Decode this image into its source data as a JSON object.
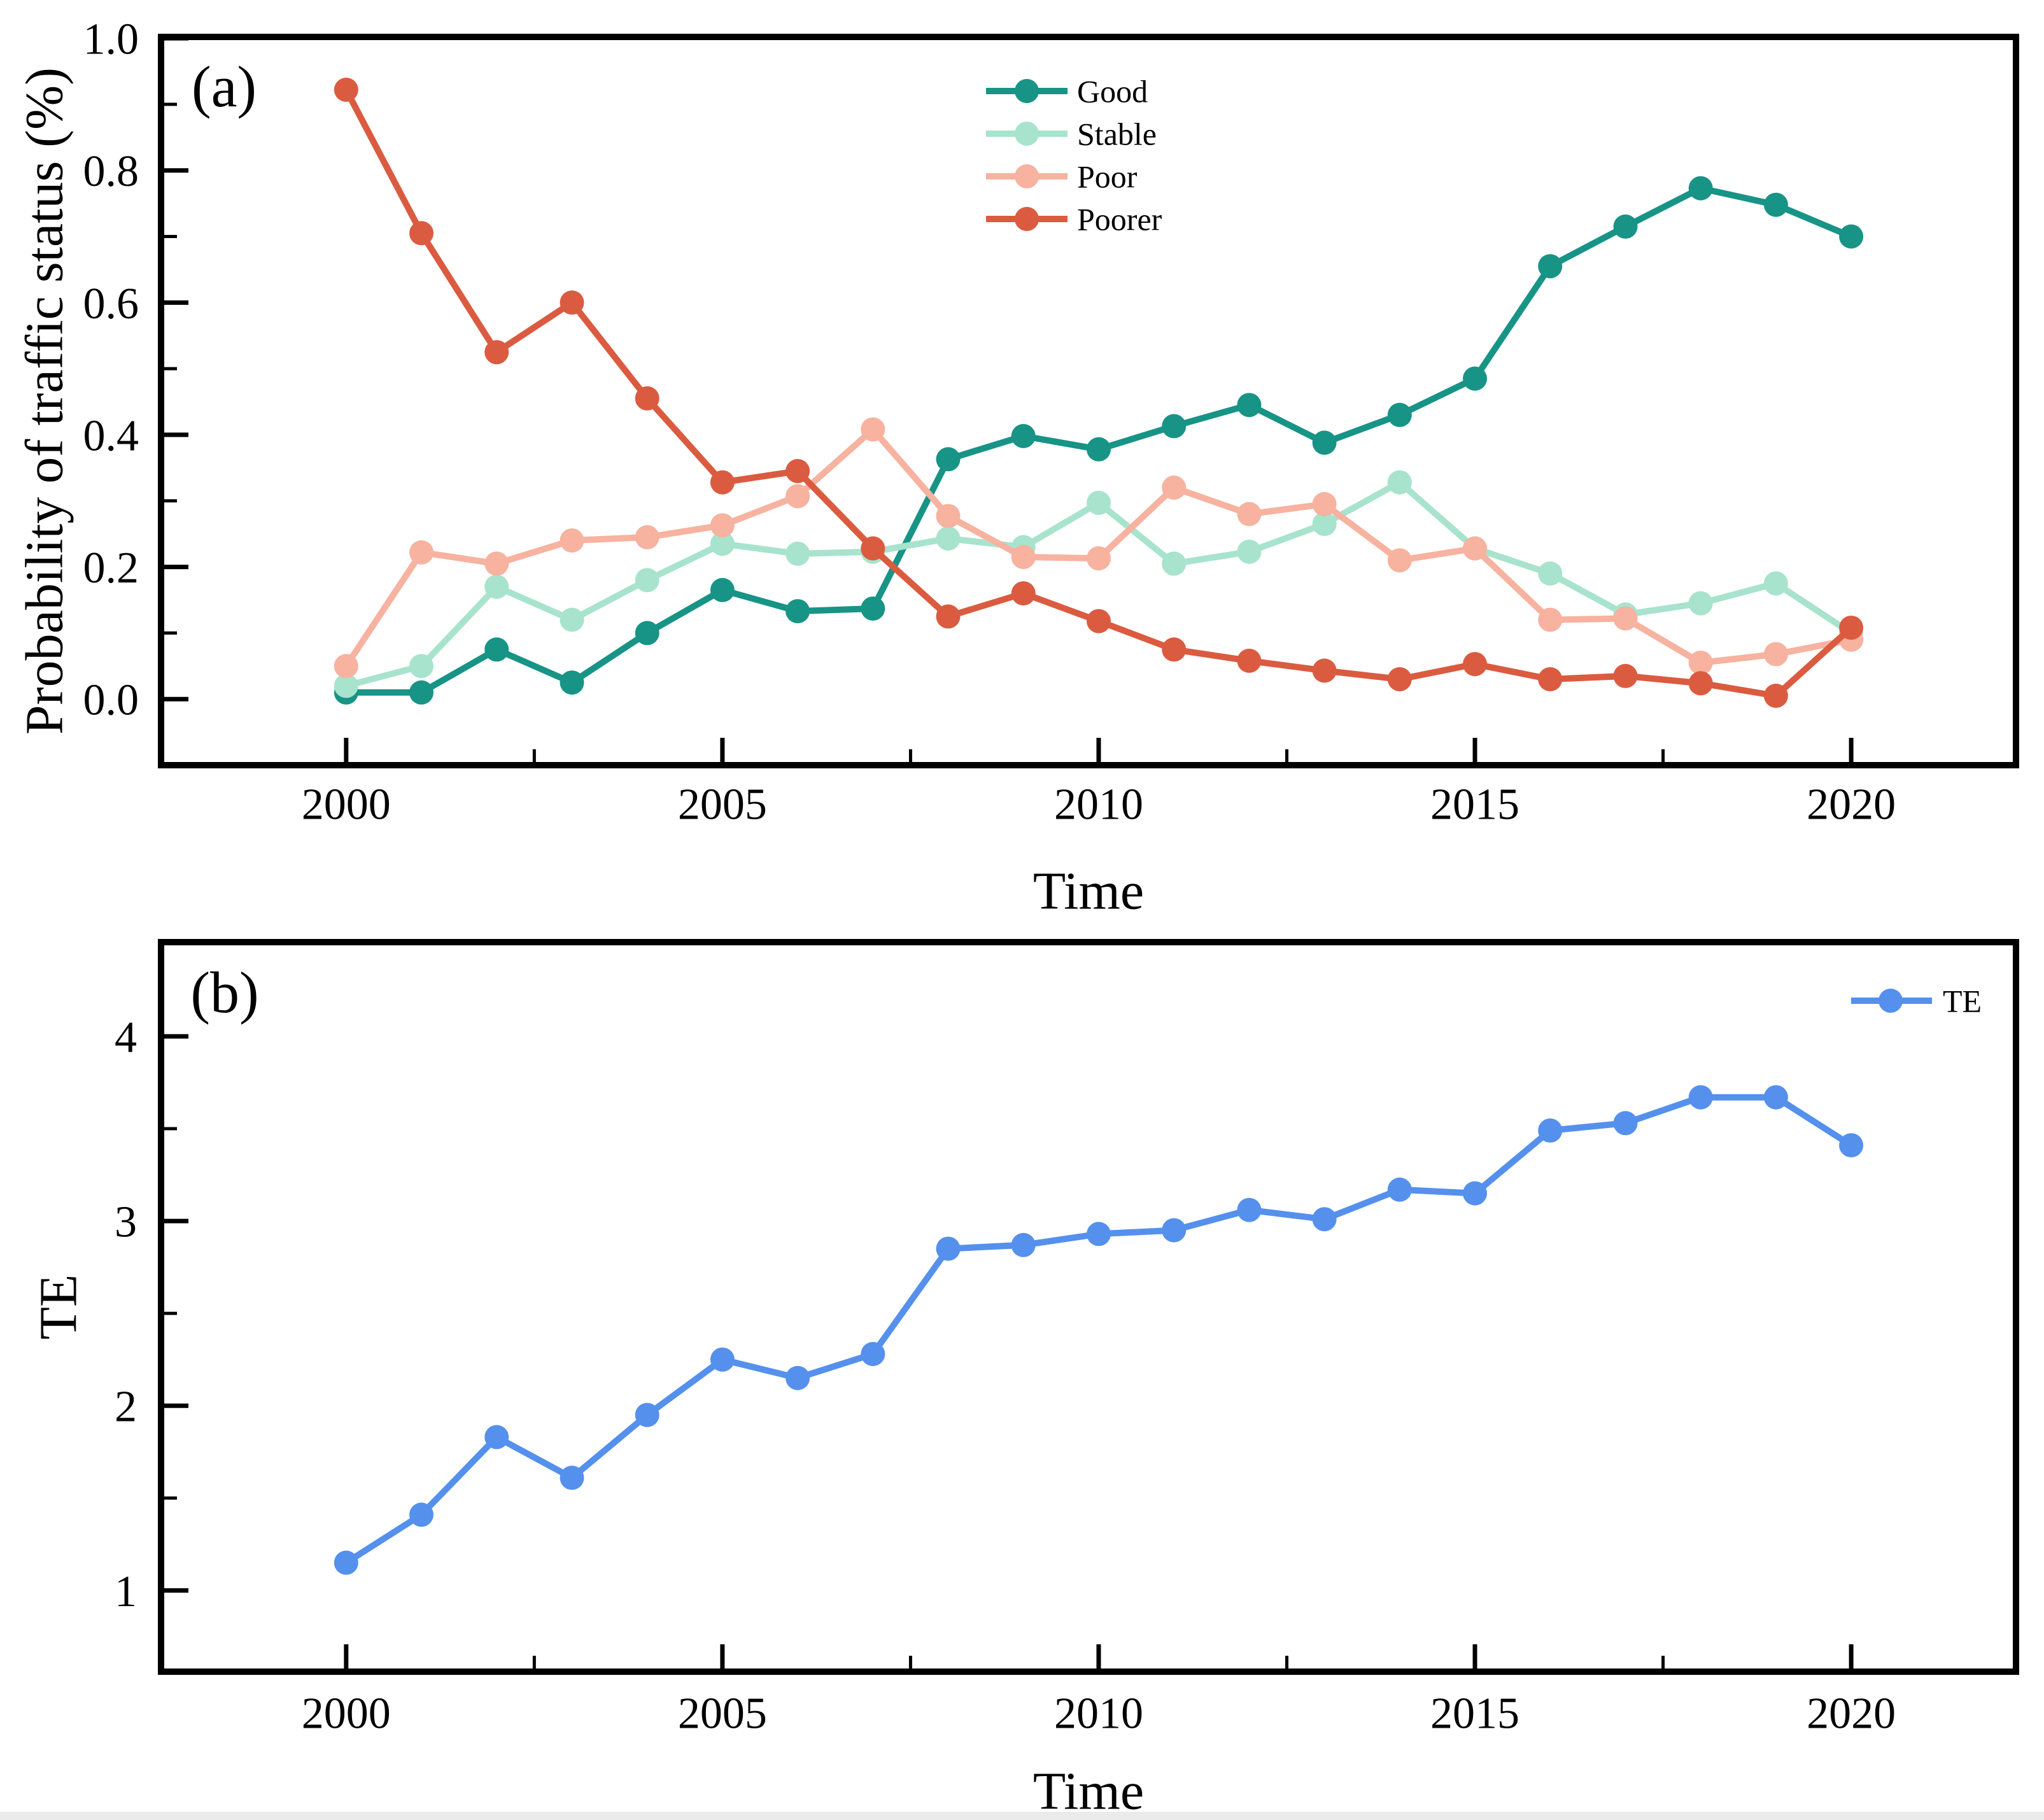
{
  "figure_colors": {
    "good": "#179486",
    "stable": "#A8E3CD",
    "poor": "#F7B2A0",
    "poorer": "#DB5B41",
    "te": "#5590EC",
    "axis": "#000000",
    "bottom_strip": "#ebebeb"
  },
  "chart_data": [
    {
      "type": "line",
      "panel_label": "(a)",
      "title": "",
      "xlabel": "Time",
      "ylabel": "Probability of traffic status (%)",
      "x": [
        2000,
        2001,
        2002,
        2003,
        2004,
        2005,
        2006,
        2007,
        2008,
        2009,
        2010,
        2011,
        2012,
        2013,
        2014,
        2015,
        2016,
        2017,
        2018,
        2019,
        2020
      ],
      "xlim": [
        1997.54,
        2022.19
      ],
      "ylim": [
        -0.1,
        1.002
      ],
      "xticks": [
        2000,
        2005,
        2010,
        2015,
        2020
      ],
      "xtick_labels": [
        "2000",
        "2005",
        "2010",
        "2015",
        "2020"
      ],
      "xticks_minor": [
        2002.5,
        2007.5,
        2012.5,
        2017.5
      ],
      "yticks": [
        0,
        0.2,
        0.4,
        0.6,
        0.8,
        1.0
      ],
      "ytick_labels": [
        "0.0",
        "0.2",
        "0.4",
        "0.6",
        "0.8",
        "1.0"
      ],
      "yticks_minor": [
        0.1,
        0.3,
        0.5,
        0.7,
        0.9
      ],
      "grid": false,
      "legend_position": "upper center-right, vertical",
      "series": [
        {
          "name": "Good",
          "color": "#179486",
          "values": [
            0.01,
            0.01,
            0.075,
            0.025,
            0.1,
            0.165,
            0.133,
            0.137,
            0.363,
            0.398,
            0.378,
            0.413,
            0.445,
            0.388,
            0.43,
            0.485,
            0.655,
            0.715,
            0.773,
            0.748,
            0.7
          ]
        },
        {
          "name": "Stable",
          "color": "#A8E3CD",
          "values": [
            0.02,
            0.05,
            0.17,
            0.12,
            0.18,
            0.235,
            0.22,
            0.223,
            0.243,
            0.23,
            0.297,
            0.205,
            0.223,
            0.265,
            0.328,
            0.228,
            0.19,
            0.128,
            0.145,
            0.175,
            0.1
          ]
        },
        {
          "name": "Poor",
          "color": "#F7B2A0",
          "values": [
            0.05,
            0.222,
            0.205,
            0.24,
            0.245,
            0.263,
            0.307,
            0.408,
            0.277,
            0.215,
            0.213,
            0.32,
            0.28,
            0.295,
            0.21,
            0.228,
            0.12,
            0.122,
            0.055,
            0.068,
            0.09
          ]
        },
        {
          "name": "Poorer",
          "color": "#DB5B41",
          "values": [
            0.922,
            0.705,
            0.525,
            0.6,
            0.455,
            0.328,
            0.345,
            0.228,
            0.125,
            0.16,
            0.118,
            0.075,
            0.058,
            0.043,
            0.03,
            0.053,
            0.03,
            0.035,
            0.024,
            0.005,
            0.108
          ]
        }
      ]
    },
    {
      "type": "line",
      "panel_label": "(b)",
      "title": "",
      "xlabel": "Time",
      "ylabel": "TE",
      "x": [
        2000,
        2001,
        2002,
        2003,
        2004,
        2005,
        2006,
        2007,
        2008,
        2009,
        2010,
        2011,
        2012,
        2013,
        2014,
        2015,
        2016,
        2017,
        2018,
        2019,
        2020
      ],
      "xlim": [
        1997.54,
        2022.19
      ],
      "ylim": [
        0.56,
        4.51
      ],
      "xticks": [
        2000,
        2005,
        2010,
        2015,
        2020
      ],
      "xtick_labels": [
        "2000",
        "2005",
        "2010",
        "2015",
        "2020"
      ],
      "xticks_minor": [
        2002.5,
        2007.5,
        2012.5,
        2017.5
      ],
      "yticks": [
        1,
        2,
        3,
        4
      ],
      "ytick_labels": [
        "1",
        "2",
        "3",
        "4"
      ],
      "yticks_minor": [
        1.5,
        2.5,
        3.5
      ],
      "grid": false,
      "legend_position": "upper right",
      "series": [
        {
          "name": "TE",
          "color": "#5590EC",
          "values": [
            1.15,
            1.41,
            1.83,
            1.61,
            1.95,
            2.25,
            2.15,
            2.28,
            2.85,
            2.87,
            2.93,
            2.95,
            3.06,
            3.01,
            3.17,
            3.15,
            3.49,
            3.53,
            3.67,
            3.67,
            3.41
          ]
        }
      ]
    }
  ]
}
